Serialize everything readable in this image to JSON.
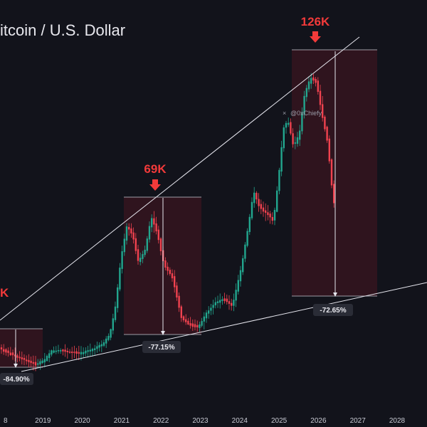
{
  "chart_data": {
    "type": "candlestick",
    "title": "itcoin / U.S. Dollar",
    "watermark": "@0xChiefy",
    "x_ticks": [
      "8",
      "2019",
      "2020",
      "2021",
      "2022",
      "2023",
      "2024",
      "2025",
      "2026",
      "2027",
      "2028"
    ],
    "peaks": [
      {
        "label": "K",
        "year": 2017.95
      },
      {
        "label": "69K",
        "year": 2021.85
      },
      {
        "label": "126K",
        "year": 2025.75
      }
    ],
    "drawdowns": [
      {
        "label": "-84.90%",
        "start_year": 2017.95,
        "end_year": 2018.9
      },
      {
        "label": "-77.15%",
        "start_year": 2021.1,
        "end_year": 2022.9
      },
      {
        "label": "-72.65%",
        "start_year": 2025.05,
        "end_year": 2027.0
      }
    ],
    "colors": {
      "up": "#22a68e",
      "down": "#f0424f",
      "peak_text": "#f23a3a",
      "box_fill": "#3a1620",
      "line": "#e6e6ee",
      "background": "#12131b"
    }
  }
}
